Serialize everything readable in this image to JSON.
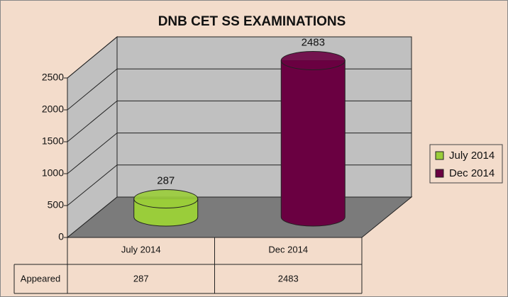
{
  "chart_data": {
    "type": "bar3d",
    "title": "DNB CET SS EXAMINATIONS",
    "categories": [
      "July 2014",
      "Dec 2014"
    ],
    "series": [
      {
        "name": "Appeared",
        "values": [
          287,
          2483
        ],
        "colors": [
          "#9acd3a",
          "#6a0041"
        ]
      }
    ],
    "ylim": [
      0,
      2500
    ],
    "yticks": [
      0,
      500,
      1000,
      1500,
      2000,
      2500
    ],
    "grid": true,
    "legend": "right"
  }
}
